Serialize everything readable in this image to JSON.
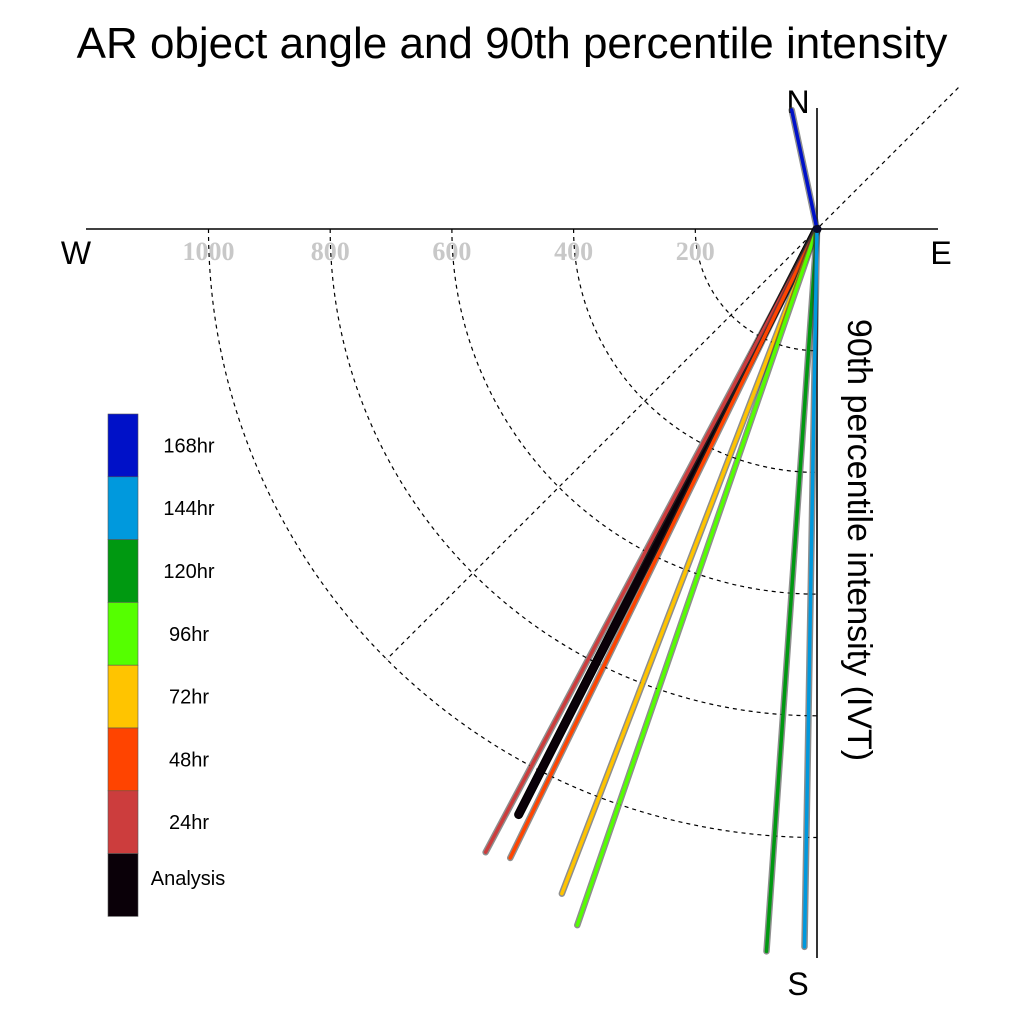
{
  "chart_data": {
    "type": "polar-vector",
    "title": "AR object angle and 90th percentile intensity",
    "axis_label": "90th percentile intensity (IVT)",
    "compass": {
      "north": "N",
      "south": "S",
      "east": "E",
      "west": "W"
    },
    "radial_ticks": [
      {
        "value": 200,
        "label": "200"
      },
      {
        "value": 400,
        "label": "400"
      },
      {
        "value": 600,
        "label": "600"
      },
      {
        "value": 800,
        "label": "800"
      },
      {
        "value": 1000,
        "label": "1000"
      }
    ],
    "radial_max": 1200,
    "grid": "dashed circles with 45° guide line",
    "series": [
      {
        "name": "168hr",
        "color": "#0011c8",
        "angle_deg": 348,
        "intensity": 200
      },
      {
        "name": "144hr",
        "color": "#0099dd",
        "angle_deg": 181,
        "intensity": 1180
      },
      {
        "name": "120hr",
        "color": "#009911",
        "angle_deg": 184,
        "intensity": 1190
      },
      {
        "name": "96hr",
        "color": "#55ff00",
        "angle_deg": 199,
        "intensity": 1210
      },
      {
        "name": "72hr",
        "color": "#ffc400",
        "angle_deg": 201,
        "intensity": 1170
      },
      {
        "name": "48hr",
        "color": "#ff4400",
        "angle_deg": 206,
        "intensity": 1150
      },
      {
        "name": "24hr",
        "color": "#cc3d3d",
        "angle_deg": 208,
        "intensity": 1160
      },
      {
        "name": "Analysis",
        "color": "#0a0008",
        "angle_deg": 207,
        "intensity": 1080
      }
    ],
    "legend_position": "left"
  }
}
